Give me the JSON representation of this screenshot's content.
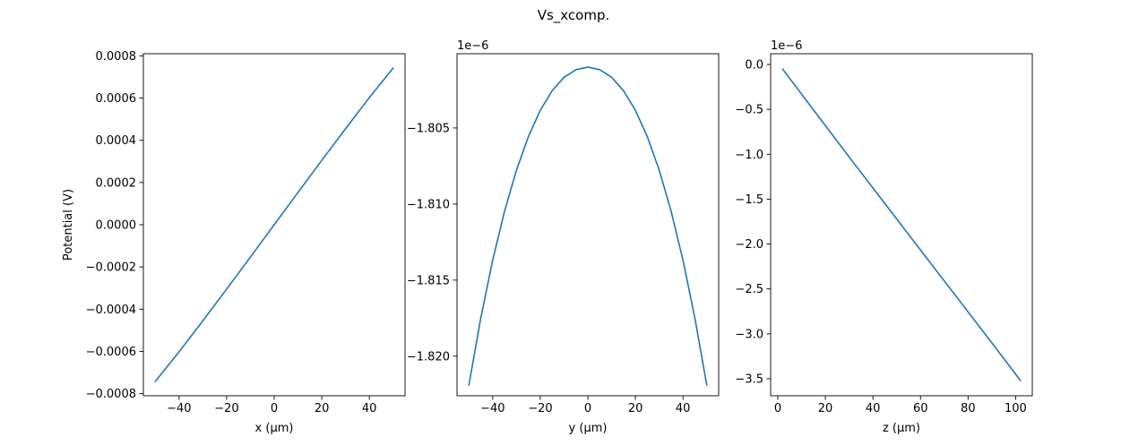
{
  "figure": {
    "title": "Vs_xcomp."
  },
  "style": {
    "line_color": "#1f77b4",
    "axis_color": "#000000",
    "background": "#ffffff"
  },
  "chart_data": [
    {
      "type": "line",
      "title": "",
      "xlabel": "x (μm)",
      "ylabel": "Potential (V)",
      "offset_text": "",
      "xlim": [
        -55,
        55
      ],
      "ylim": [
        -0.00081,
        0.00081
      ],
      "xticks": [
        -40,
        -20,
        0,
        20,
        40
      ],
      "xtick_labels": [
        "−40",
        "−20",
        "0",
        "20",
        "40"
      ],
      "yticks": [
        -0.0008,
        -0.0006,
        -0.0004,
        -0.0002,
        0.0,
        0.0002,
        0.0004,
        0.0006,
        0.0008
      ],
      "ytick_labels": [
        "−0.0008",
        "−0.0006",
        "−0.0004",
        "−0.0002",
        "0.0000",
        "0.0002",
        "0.0004",
        "0.0006",
        "0.0008"
      ],
      "grid": false,
      "series": [
        {
          "x": [
            -50,
            -40,
            -30,
            -20,
            -10,
            0,
            10,
            20,
            30,
            40,
            50
          ],
          "y": [
            -0.000742,
            -0.000602,
            -0.000455,
            -0.000305,
            -0.000153,
            0.0,
            0.000153,
            0.000305,
            0.000455,
            0.000602,
            0.000742
          ]
        }
      ]
    },
    {
      "type": "line",
      "title": "",
      "xlabel": "y (μm)",
      "ylabel": "",
      "offset_text": "1e−6",
      "xlim": [
        -55,
        55
      ],
      "ylim": [
        -1.8226,
        -1.80012
      ],
      "xticks": [
        -40,
        -20,
        0,
        20,
        40
      ],
      "xtick_labels": [
        "−40",
        "−20",
        "0",
        "20",
        "40"
      ],
      "yticks": [
        -1.805,
        -1.81,
        -1.815,
        -1.82
      ],
      "ytick_labels": [
        "−1.805",
        "−1.810",
        "−1.815",
        "−1.820"
      ],
      "grid": false,
      "series": [
        {
          "x": [
            -50,
            -45,
            -40,
            -35,
            -30,
            -25,
            -20,
            -15,
            -10,
            -5,
            0,
            5,
            10,
            15,
            20,
            25,
            30,
            35,
            40,
            45,
            50
          ],
          "y": [
            -1.8219,
            -1.81749,
            -1.81369,
            -1.81046,
            -1.80777,
            -1.80557,
            -1.80384,
            -1.80255,
            -1.80167,
            -1.80117,
            -1.801,
            -1.80117,
            -1.80167,
            -1.80255,
            -1.80384,
            -1.80557,
            -1.80777,
            -1.81046,
            -1.81369,
            -1.81749,
            -1.8219
          ]
        }
      ]
    },
    {
      "type": "line",
      "title": "",
      "xlabel": "z (μm)",
      "ylabel": "",
      "offset_text": "1e−6",
      "xlim": [
        -3,
        107
      ],
      "ylim": [
        -3.69,
        0.12
      ],
      "xticks": [
        0,
        20,
        40,
        60,
        80,
        100
      ],
      "xtick_labels": [
        "0",
        "20",
        "40",
        "60",
        "80",
        "100"
      ],
      "yticks": [
        0.0,
        -0.5,
        -1.0,
        -1.5,
        -2.0,
        -2.5,
        -3.0,
        -3.5
      ],
      "ytick_labels": [
        "0.0",
        "−0.5",
        "−1.0",
        "−1.5",
        "−2.0",
        "−2.5",
        "−3.0",
        "−3.5"
      ],
      "grid": false,
      "series": [
        {
          "x": [
            2,
            12,
            22,
            32,
            42,
            52,
            62,
            72,
            82,
            92,
            102
          ],
          "y": [
            -0.05,
            -0.4,
            -0.75,
            -1.1,
            -1.445,
            -1.79,
            -2.135,
            -2.48,
            -2.825,
            -3.17,
            -3.52
          ]
        }
      ]
    }
  ]
}
